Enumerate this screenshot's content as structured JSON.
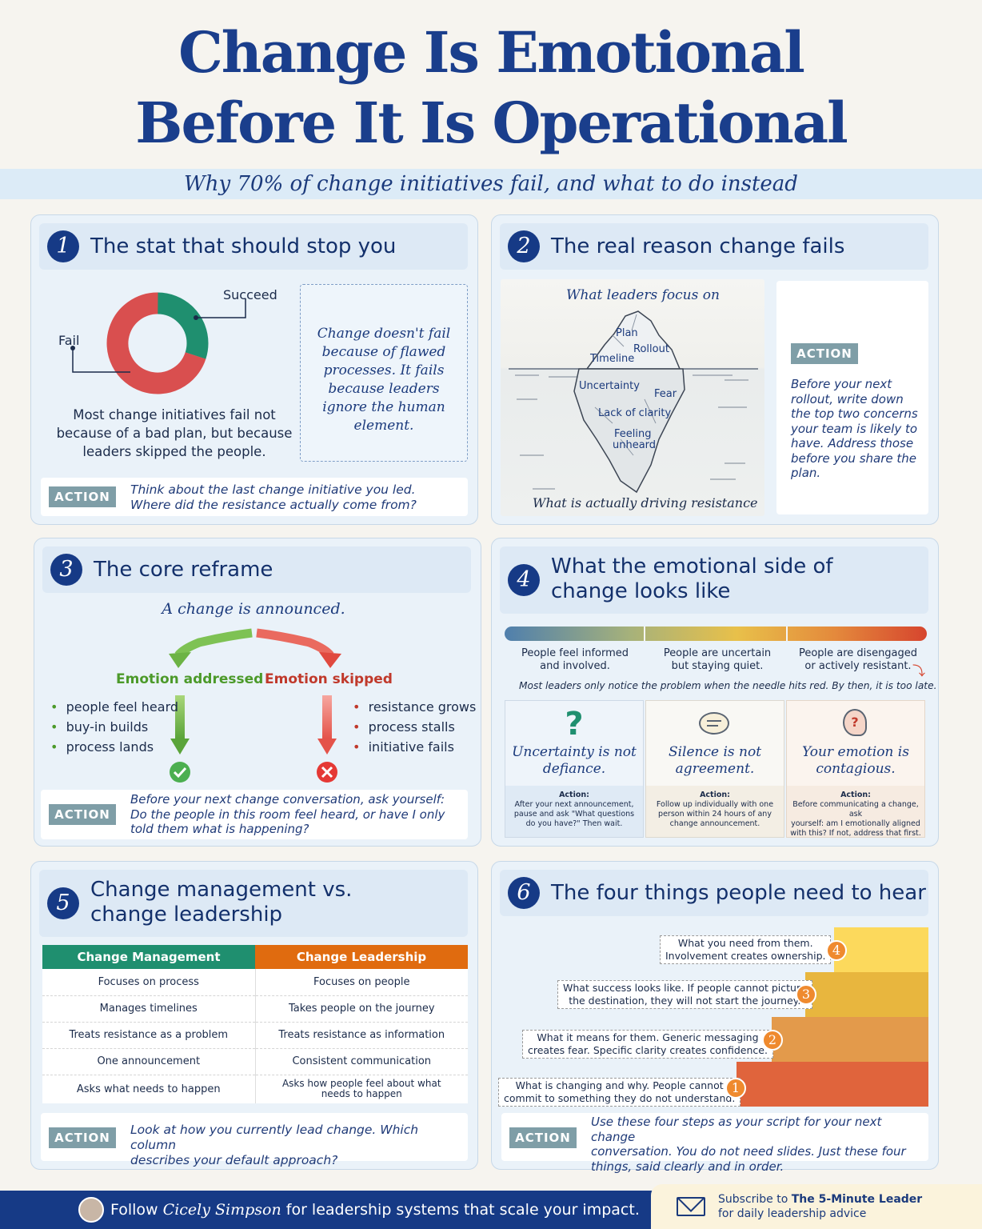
{
  "title": {
    "line1": "Change Is Emotional",
    "line2": "Before It Is Operational"
  },
  "subtitle": "Why 70% of change initiatives fail, and what to do instead",
  "colors": {
    "navy": "#163a86",
    "green": "#1f8f6f",
    "red": "#d94f4f",
    "orange": "#e06b0f",
    "action_gray": "#7f9ea7"
  },
  "s1": {
    "num": "1",
    "title": "The stat that should stop you",
    "succeed": "Succeed",
    "fail": "Fail",
    "caption": "Most change initiatives fail not because of a bad plan, but because leaders skipped the people.",
    "quote": "Change doesn't fail because of flawed processes. It fails because leaders ignore the human element.",
    "action_label": "ACTION",
    "action_line1": "Think about the last change initiative you led.",
    "action_line2": "Where did the resistance actually come from?"
  },
  "s1_chart": {
    "type": "pie",
    "slices": [
      {
        "label": "Fail",
        "value": 70,
        "color": "#d94f4f"
      },
      {
        "label": "Succeed",
        "value": 30,
        "color": "#1f8f6f"
      }
    ]
  },
  "s2": {
    "num": "2",
    "title": "The real reason change fails",
    "top_label": "What leaders focus on",
    "above": [
      "Plan",
      "Rollout",
      "Timeline"
    ],
    "below": [
      "Uncertainty",
      "Fear",
      "Lack of clarity",
      "Feeling",
      "unheard"
    ],
    "bottom_label": "What is actually driving resistance",
    "action_label": "ACTION",
    "action_text": "Before your next rollout, write down the top two concerns your team is likely to have. Address those before you share the plan."
  },
  "s3": {
    "num": "3",
    "title": "The core reframe",
    "announce": "A change is announced.",
    "left_head": "Emotion addressed",
    "right_head": "Emotion skipped",
    "left_items": [
      "people feel heard",
      "buy-in builds",
      "process lands"
    ],
    "right_items": [
      "resistance grows",
      "process stalls",
      "initiative fails"
    ],
    "action_label": "ACTION",
    "action_line1": "Before your next change conversation, ask yourself:",
    "action_line2": "Do the people in this room feel heard, or have I only",
    "action_line3": "told them what is happening?"
  },
  "s4": {
    "num": "4",
    "title_line1": "What the emotional side of",
    "title_line2": "change looks like",
    "states": [
      {
        "l1": "People feel informed",
        "l2": "and involved."
      },
      {
        "l1": "People are uncertain",
        "l2": "but staying quiet."
      },
      {
        "l1": "People are disengaged",
        "l2": "or actively resistant."
      }
    ],
    "note": "Most leaders only notice the problem when the needle hits red. By then, it is too late.",
    "cards": [
      {
        "icon": "question-mark-icon",
        "t1": "Uncertainty is not",
        "t2": "defiance.",
        "action": "Action:",
        "a1": "After your next announcement,",
        "a2": "pause and ask \"What questions",
        "a3": "do you have?\" Then wait."
      },
      {
        "icon": "speech-bubble-icon",
        "t1": "Silence is not",
        "t2": "agreement.",
        "action": "Action:",
        "a1": "Follow up individually with one",
        "a2": "person within 24 hours of any",
        "a3": "change announcement."
      },
      {
        "icon": "head-question-icon",
        "t1": "Your emotion is",
        "t2": "contagious.",
        "action": "Action:",
        "a1": "Before communicating a change, ask",
        "a2": "yourself: am I emotionally aligned",
        "a3": "with this? If not, address that first."
      }
    ]
  },
  "s5": {
    "num": "5",
    "title_line1": "Change management vs.",
    "title_line2": "change leadership",
    "col1": "Change Management",
    "col2": "Change Leadership",
    "rows": [
      [
        "Focuses on process",
        "Focuses on people"
      ],
      [
        "Manages timelines",
        "Takes people on the journey"
      ],
      [
        "Treats resistance as a problem",
        "Treats resistance as information"
      ],
      [
        "One announcement",
        "Consistent communication"
      ],
      [
        "Asks what needs to happen",
        "Asks how people feel about what needs to happen"
      ]
    ],
    "action_label": "ACTION",
    "action_line1": "Look at how you currently lead change. Which column",
    "action_line2": "describes your default approach?"
  },
  "s6": {
    "num": "6",
    "title": "The four things people need to hear",
    "steps": [
      {
        "n": "4",
        "l1": "What you need from them.",
        "l2": "Involvement creates ownership."
      },
      {
        "n": "3",
        "l1": "What success looks like. If people cannot picture",
        "l2": "the destination, they will not start the journey."
      },
      {
        "n": "2",
        "l1": "What it means for them. Generic messaging",
        "l2": "creates fear. Specific clarity creates confidence."
      },
      {
        "n": "1",
        "l1": "What is changing and why. People cannot",
        "l2": "commit to something they do not understand."
      }
    ],
    "action_label": "ACTION",
    "action_line1": "Use these four steps as your script for your next change",
    "action_line2": "conversation. You do not need slides. Just these four",
    "action_line3": "things, said clearly and in order."
  },
  "footer": {
    "follow": "Follow",
    "name": "Cicely Simpson",
    "rest": "for leadership systems that scale your impact.",
    "sub1": "Subscribe to",
    "sub_brand": "The 5-Minute Leader",
    "sub2": "for daily leadership advice"
  }
}
